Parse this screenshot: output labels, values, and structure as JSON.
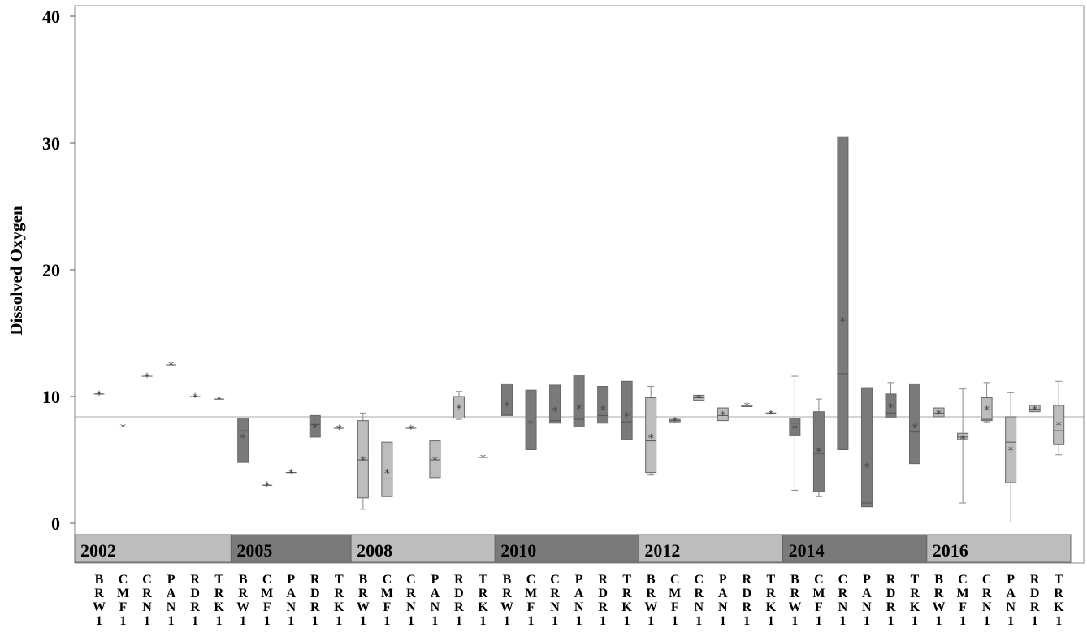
{
  "chart_data": {
    "type": "box",
    "ylabel": "Dissolved Oxygen",
    "xlabel": "",
    "ylim": [
      0,
      40
    ],
    "y_ticks": [
      0,
      10,
      20,
      30,
      40
    ],
    "reference_line": 8.4,
    "colors": {
      "light": "#bdbdbd",
      "dark": "#7a7a7a",
      "line": "#555555"
    },
    "groups": [
      {
        "year": "2002",
        "shade": "light",
        "boxes": [
          {
            "site": "BRW1",
            "min": 10.2,
            "q1": 10.2,
            "median": 10.2,
            "q3": 10.2,
            "max": 10.2,
            "mean": 10.2
          },
          {
            "site": "CMF1",
            "min": 7.6,
            "q1": 7.6,
            "median": 7.6,
            "q3": 7.6,
            "max": 7.6,
            "mean": 7.6
          },
          {
            "site": "CRN1",
            "min": 11.6,
            "q1": 11.6,
            "median": 11.6,
            "q3": 11.6,
            "max": 11.6,
            "mean": 11.6
          },
          {
            "site": "PAN1",
            "min": 12.5,
            "q1": 12.5,
            "median": 12.5,
            "q3": 12.5,
            "max": 12.5,
            "mean": 12.5
          },
          {
            "site": "RDR1",
            "min": 10.0,
            "q1": 10.0,
            "median": 10.0,
            "q3": 10.0,
            "max": 10.0,
            "mean": 10.0
          },
          {
            "site": "TRK1",
            "min": 9.8,
            "q1": 9.8,
            "median": 9.8,
            "q3": 9.8,
            "max": 9.8,
            "mean": 9.8
          }
        ]
      },
      {
        "year": "2005",
        "shade": "dark",
        "boxes": [
          {
            "site": "BRW1",
            "min": 4.8,
            "q1": 4.8,
            "median": 7.3,
            "q3": 8.3,
            "max": 8.3,
            "mean": 6.8
          },
          {
            "site": "CMF1",
            "min": 3.0,
            "q1": 3.0,
            "median": 3.0,
            "q3": 3.0,
            "max": 3.0,
            "mean": 3.0
          },
          {
            "site": "PAN1",
            "min": 4.0,
            "q1": 4.0,
            "median": 4.0,
            "q3": 4.0,
            "max": 4.0,
            "mean": 4.0
          },
          {
            "site": "RDR1",
            "min": 6.8,
            "q1": 6.8,
            "median": 7.8,
            "q3": 8.5,
            "max": 8.5,
            "mean": 7.6
          },
          {
            "site": "TRK1",
            "min": 7.5,
            "q1": 7.5,
            "median": 7.5,
            "q3": 7.5,
            "max": 7.5,
            "mean": 7.5
          }
        ]
      },
      {
        "year": "2008",
        "shade": "light",
        "boxes": [
          {
            "site": "BRW1",
            "min": 1.1,
            "q1": 2.0,
            "median": 5.0,
            "q3": 8.1,
            "max": 8.7,
            "mean": 5.0
          },
          {
            "site": "CMF1",
            "min": 2.1,
            "q1": 2.1,
            "median": 3.5,
            "q3": 6.4,
            "max": 6.4,
            "mean": 4.0
          },
          {
            "site": "CRN1",
            "min": 7.5,
            "q1": 7.5,
            "median": 7.5,
            "q3": 7.5,
            "max": 7.5,
            "mean": 7.5
          },
          {
            "site": "PAN1",
            "min": 3.6,
            "q1": 3.6,
            "median": 5.0,
            "q3": 6.5,
            "max": 6.5,
            "mean": 5.0
          },
          {
            "site": "RDR1",
            "min": 8.2,
            "q1": 8.3,
            "median": 8.3,
            "q3": 10.0,
            "max": 10.4,
            "mean": 9.1
          },
          {
            "site": "TRK1",
            "min": 5.2,
            "q1": 5.2,
            "median": 5.2,
            "q3": 5.2,
            "max": 5.2,
            "mean": 5.2
          }
        ]
      },
      {
        "year": "2010",
        "shade": "dark",
        "boxes": [
          {
            "site": "BRW1",
            "min": 8.5,
            "q1": 8.5,
            "median": 8.6,
            "q3": 11.0,
            "max": 11.0,
            "mean": 9.3
          },
          {
            "site": "CMF1",
            "min": 5.8,
            "q1": 5.8,
            "median": 7.6,
            "q3": 10.5,
            "max": 10.5,
            "mean": 7.9
          },
          {
            "site": "CRN1",
            "min": 7.9,
            "q1": 7.9,
            "median": 8.1,
            "q3": 10.9,
            "max": 10.9,
            "mean": 8.9
          },
          {
            "site": "PAN1",
            "min": 7.6,
            "q1": 7.6,
            "median": 8.2,
            "q3": 11.7,
            "max": 11.7,
            "mean": 9.1
          },
          {
            "site": "RDR1",
            "min": 7.9,
            "q1": 7.9,
            "median": 8.5,
            "q3": 10.8,
            "max": 10.8,
            "mean": 9.0
          },
          {
            "site": "TRK1",
            "min": 6.6,
            "q1": 6.6,
            "median": 8.0,
            "q3": 11.2,
            "max": 11.2,
            "mean": 8.5
          }
        ]
      },
      {
        "year": "2012",
        "shade": "light",
        "boxes": [
          {
            "site": "BRW1",
            "min": 3.8,
            "q1": 4.0,
            "median": 6.5,
            "q3": 9.9,
            "max": 10.8,
            "mean": 6.8
          },
          {
            "site": "CMF1",
            "min": 8.0,
            "q1": 8.0,
            "median": 8.1,
            "q3": 8.2,
            "max": 8.2,
            "mean": 8.1
          },
          {
            "site": "CRN1",
            "min": 9.7,
            "q1": 9.7,
            "median": 9.9,
            "q3": 10.1,
            "max": 10.1,
            "mean": 9.9
          },
          {
            "site": "PAN1",
            "min": 8.1,
            "q1": 8.1,
            "median": 8.5,
            "q3": 9.1,
            "max": 9.1,
            "mean": 8.6
          },
          {
            "site": "RDR1",
            "min": 9.2,
            "q1": 9.2,
            "median": 9.3,
            "q3": 9.3,
            "max": 9.3,
            "mean": 9.3
          },
          {
            "site": "TRK1",
            "min": 8.7,
            "q1": 8.7,
            "median": 8.7,
            "q3": 8.7,
            "max": 8.7,
            "mean": 8.7
          }
        ]
      },
      {
        "year": "2014",
        "shade": "dark",
        "boxes": [
          {
            "site": "BRW1",
            "min": 2.6,
            "q1": 6.9,
            "median": 7.9,
            "q3": 8.3,
            "max": 11.6,
            "mean": 7.5
          },
          {
            "site": "CMF1",
            "min": 2.1,
            "q1": 2.5,
            "median": 5.5,
            "q3": 8.8,
            "max": 9.8,
            "mean": 5.7
          },
          {
            "site": "CRN1",
            "min": 5.8,
            "q1": 5.8,
            "median": 11.8,
            "q3": 30.5,
            "max": 30.5,
            "mean": 16.0
          },
          {
            "site": "PAN1",
            "min": 1.3,
            "q1": 1.3,
            "median": 1.6,
            "q3": 10.7,
            "max": 10.7,
            "mean": 4.5
          },
          {
            "site": "RDR1",
            "min": 8.3,
            "q1": 8.3,
            "median": 8.7,
            "q3": 10.2,
            "max": 11.1,
            "mean": 9.2
          },
          {
            "site": "TRK1",
            "min": 4.7,
            "q1": 4.7,
            "median": 7.2,
            "q3": 11.0,
            "max": 11.0,
            "mean": 7.6
          }
        ]
      },
      {
        "year": "2016",
        "shade": "light",
        "boxes": [
          {
            "site": "BRW1",
            "min": 8.4,
            "q1": 8.4,
            "median": 8.7,
            "q3": 9.1,
            "max": 9.1,
            "mean": 8.7
          },
          {
            "site": "CMF1",
            "min": 1.6,
            "q1": 6.6,
            "median": 6.8,
            "q3": 7.1,
            "max": 10.6,
            "mean": 6.7
          },
          {
            "site": "CRN1",
            "min": 8.0,
            "q1": 8.1,
            "median": 8.2,
            "q3": 9.9,
            "max": 11.1,
            "mean": 9.0
          },
          {
            "site": "PAN1",
            "min": 0.1,
            "q1": 3.2,
            "median": 6.4,
            "q3": 8.4,
            "max": 10.3,
            "mean": 5.8
          },
          {
            "site": "RDR1",
            "min": 8.8,
            "q1": 8.8,
            "median": 9.0,
            "q3": 9.3,
            "max": 9.3,
            "mean": 9.0
          },
          {
            "site": "TRK1",
            "min": 5.4,
            "q1": 6.2,
            "median": 7.3,
            "q3": 9.3,
            "max": 11.2,
            "mean": 7.8
          }
        ]
      }
    ]
  }
}
